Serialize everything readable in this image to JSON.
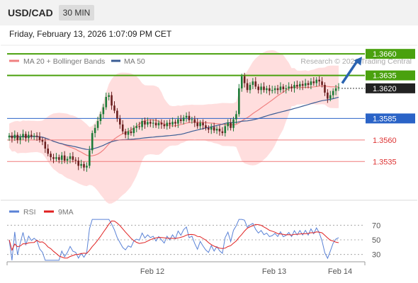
{
  "header": {
    "symbol": "USD/CAD",
    "timeframe": "30 MIN"
  },
  "datetime": "Friday, February 13, 2026 1:07:09 PM CET",
  "copyright": "Research © 2026 Trading Central",
  "colors": {
    "bull": "#1c7a37",
    "bear": "#6b1f1f",
    "resistance": "#4aa10e",
    "pivot": "#2a63c7",
    "support": "#f07a7a",
    "bollinger": "#ffd6d6",
    "ma20": "#f08080",
    "ma50": "#3a5c94",
    "arrow": "#2a63b0",
    "rsi": "#5a82d6",
    "rsi_ma": "#e02020"
  },
  "chart_data": [
    {
      "type": "candlestick",
      "legend": [
        {
          "name": "MA 20 + Bollinger Bands",
          "color": "#f08080"
        },
        {
          "name": "MA 50",
          "color": "#3a5c94"
        }
      ],
      "x_ticks": [
        "Feb 12",
        "Feb 13",
        "Feb 14"
      ],
      "ylim": [
        1.349,
        1.367
      ],
      "levels": [
        {
          "value": 1.366,
          "label": "1.3660",
          "kind": "resistance"
        },
        {
          "value": 1.3635,
          "label": "1.3635",
          "kind": "resistance"
        },
        {
          "value": 1.362,
          "label": "1.3620",
          "kind": "last"
        },
        {
          "value": 1.3585,
          "label": "1.3585",
          "kind": "pivot"
        },
        {
          "value": 1.356,
          "label": "1.3560",
          "kind": "support"
        },
        {
          "value": 1.3535,
          "label": "1.3535",
          "kind": "support"
        }
      ],
      "close": [
        1.3565,
        1.3562,
        1.3566,
        1.356,
        1.3563,
        1.3567,
        1.3562,
        1.3566,
        1.3564,
        1.3565,
        1.3564,
        1.356,
        1.3558,
        1.355,
        1.3544,
        1.354,
        1.3538,
        1.354,
        1.3537,
        1.3542,
        1.3536,
        1.3538,
        1.3541,
        1.3537,
        1.3536,
        1.353,
        1.3532,
        1.3528,
        1.353,
        1.3548,
        1.3568,
        1.3574,
        1.3582,
        1.359,
        1.3598,
        1.361,
        1.3612,
        1.36,
        1.3594,
        1.3585,
        1.3578,
        1.357,
        1.3566,
        1.357,
        1.3568,
        1.3574,
        1.3576,
        1.3575,
        1.3582,
        1.3578,
        1.3581,
        1.3579,
        1.358,
        1.3577,
        1.358,
        1.3578,
        1.3576,
        1.358,
        1.3578,
        1.3581,
        1.3579,
        1.3584,
        1.3582,
        1.3586,
        1.3588,
        1.3583,
        1.3584,
        1.358,
        1.3576,
        1.358,
        1.3577,
        1.3574,
        1.3572,
        1.3575,
        1.3571,
        1.3573,
        1.357,
        1.3568,
        1.3576,
        1.358,
        1.3574,
        1.3584,
        1.359,
        1.362,
        1.3634,
        1.3626,
        1.3618,
        1.3624,
        1.3628,
        1.3622,
        1.3618,
        1.3622,
        1.3618,
        1.362,
        1.3617,
        1.3618,
        1.362,
        1.3618,
        1.3622,
        1.3619,
        1.362,
        1.3622,
        1.362,
        1.3624,
        1.3622,
        1.3625,
        1.3623,
        1.3626,
        1.3624,
        1.3628,
        1.3626,
        1.363,
        1.3628,
        1.3624,
        1.3615,
        1.3608,
        1.3612,
        1.3617,
        1.362,
        1.3621
      ],
      "ma20_last": 1.3612,
      "ma50_last": 1.3609,
      "projection_target": 1.366
    },
    {
      "type": "line",
      "legend": [
        {
          "name": "RSI",
          "color": "#5a82d6"
        },
        {
          "name": "9MA",
          "color": "#e02020"
        }
      ],
      "ylim": [
        20,
        80
      ],
      "y_ticks": [
        70,
        50,
        30
      ],
      "reference_lines": [
        70,
        50,
        30
      ],
      "last_rsi": 57,
      "last_ma": 53
    }
  ]
}
